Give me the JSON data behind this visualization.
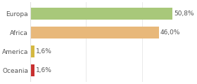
{
  "categories": [
    "Europa",
    "Africa",
    "America",
    "Oceania"
  ],
  "values": [
    50.8,
    46.0,
    1.6,
    1.6
  ],
  "bar_colors": [
    "#a8c87a",
    "#e8b87a",
    "#d4b840",
    "#c83030"
  ],
  "labels": [
    "50,8%",
    "46,0%",
    "1,6%",
    "1,6%"
  ],
  "xlim": [
    0,
    58
  ],
  "background_color": "#ffffff",
  "grid_color": "#e0e0e0",
  "text_color": "#555555",
  "bar_height": 0.62,
  "label_fontsize": 6.5,
  "category_fontsize": 6.5
}
